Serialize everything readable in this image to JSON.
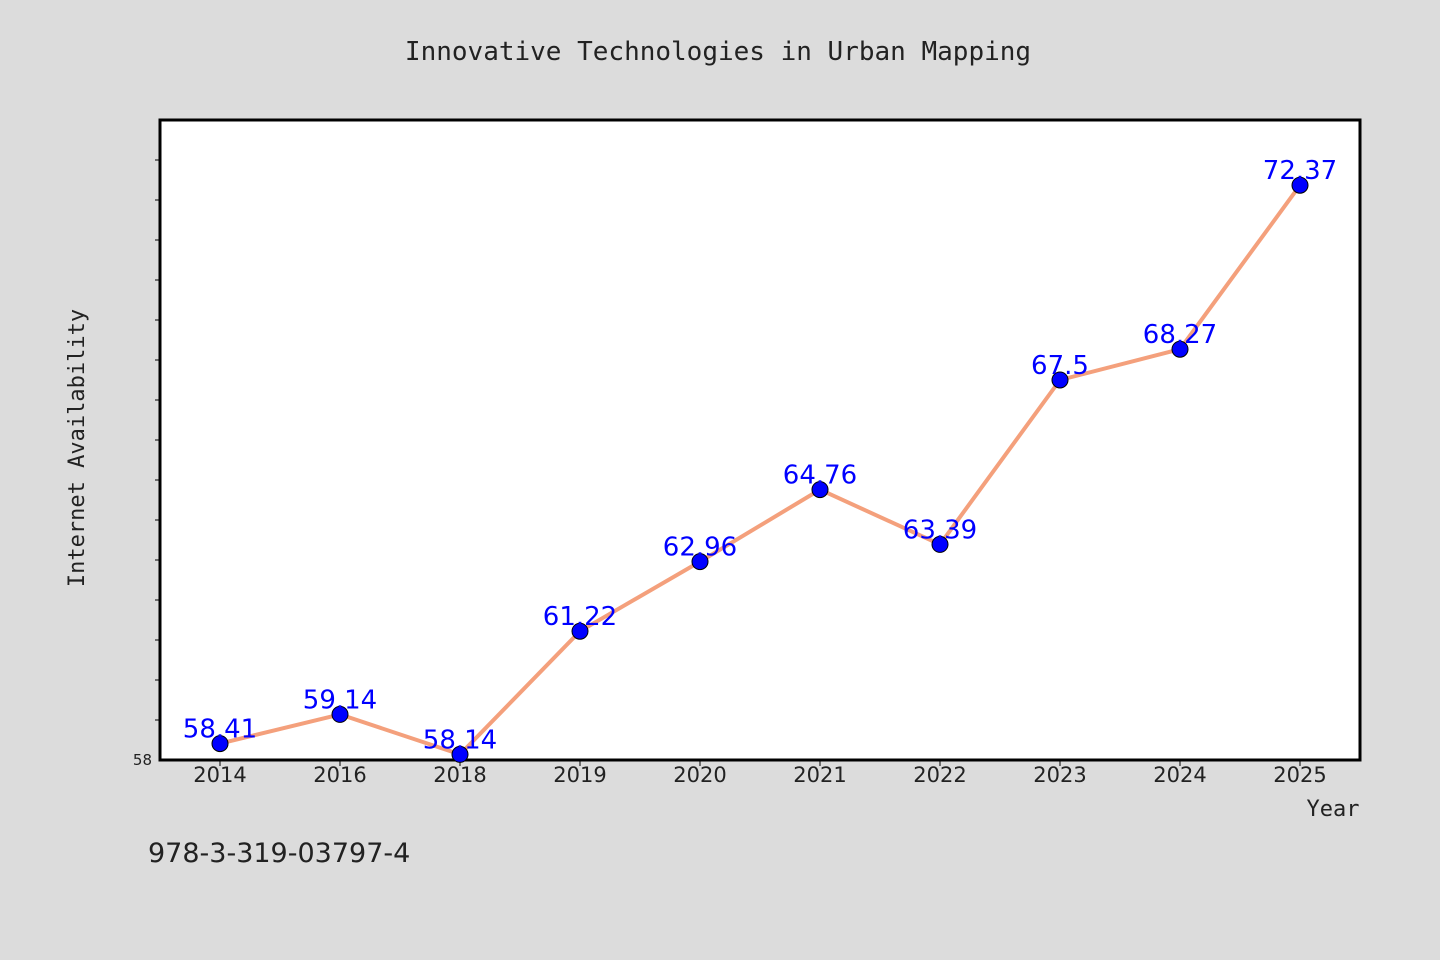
{
  "chart_data": {
    "type": "line",
    "title": "Innovative Technologies in Urban Mapping",
    "xlabel": "Year",
    "ylabel": "Internet Availability",
    "categories": [
      "2014",
      "2016",
      "2018",
      "2019",
      "2020",
      "2021",
      "2022",
      "2023",
      "2024",
      "2025"
    ],
    "series": [
      {
        "values": [
          58.41,
          59.14,
          58.14,
          61.22,
          62.96,
          64.76,
          63.39,
          67.5,
          68.27,
          72.37
        ],
        "data_labels": [
          "58.41",
          "59.14",
          "58.14",
          "61.22",
          "62.96",
          "64.76",
          "63.39",
          "67.5",
          "68.27",
          "72.37"
        ],
        "line_color": "#f4a07c",
        "marker_color": "#0000ff"
      }
    ],
    "ylim": [
      58,
      74
    ],
    "yticks_labeled": [
      "58"
    ],
    "legend": "none",
    "grid": false
  },
  "footer": {
    "isbn": "978-3-319-03797-4"
  },
  "colors": {
    "background": "#dcdcdc",
    "plot_background": "#ffffff",
    "axis": "#000000"
  }
}
